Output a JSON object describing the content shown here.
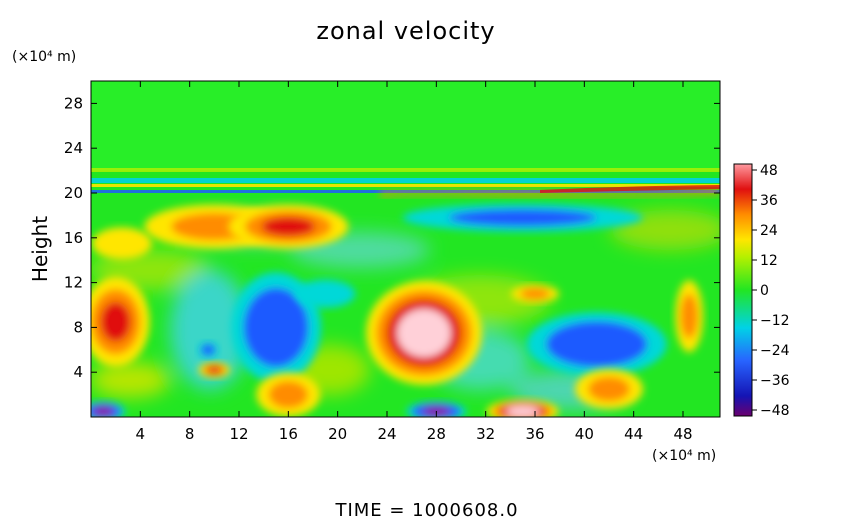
{
  "chart_data": {
    "type": "heatmap",
    "title": "zonal velocity",
    "ylabel": "Height",
    "y_unit": "(×10⁴ m)",
    "x_unit": "(×10⁴ m)",
    "xlabel": "",
    "x_ticks": [
      "4",
      "8",
      "12",
      "16",
      "20",
      "24",
      "28",
      "32",
      "36",
      "40",
      "44",
      "48"
    ],
    "y_ticks": [
      "4",
      "8",
      "12",
      "16",
      "20",
      "24",
      "28"
    ],
    "xlim": [
      0,
      51
    ],
    "ylim": [
      0,
      30
    ],
    "colorbar": {
      "ticks": [
        "48",
        "36",
        "24",
        "12",
        "0",
        "−12",
        "−24",
        "−36",
        "−48"
      ],
      "range": [
        -48,
        48
      ]
    },
    "colors": {
      "strong_positive": "#e01010",
      "positive": "#ff8c00",
      "weak_positive": "#ffe600",
      "neutral": "#22e622",
      "weak_negative": "#00d8d8",
      "negative": "#1e5aff",
      "strong_negative": "#0a0aa0",
      "extreme_positive": "#ffd0d8",
      "extreme_negative": "#8a0a9a"
    },
    "features": [
      {
        "x": 2,
        "y": 8.5,
        "value": 38
      },
      {
        "x": 15,
        "y": 8,
        "value": -44
      },
      {
        "x": 27,
        "y": 7.5,
        "value": 48
      },
      {
        "x": 41,
        "y": 6.5,
        "value": -40
      },
      {
        "x": 10,
        "y": 17,
        "value": 34
      },
      {
        "x": 16,
        "y": 17,
        "value": 38
      },
      {
        "x": 16,
        "y": 2,
        "value": 32
      },
      {
        "x": 42,
        "y": 2.5,
        "value": 28
      },
      {
        "x": 35,
        "y": 0.5,
        "value": 48
      },
      {
        "x": 28,
        "y": 0.5,
        "value": -48
      },
      {
        "x": 1,
        "y": 0.5,
        "value": -48
      },
      {
        "x": 10,
        "y": 4.2,
        "value": 42
      },
      {
        "x": 9.5,
        "y": 6,
        "value": -36
      },
      {
        "x": 48.5,
        "y": 9,
        "value": 32
      },
      {
        "x": 36,
        "y": 11,
        "value": 24
      },
      {
        "x": 35,
        "y": 17.8,
        "value": -28
      },
      {
        "x": 2.5,
        "y": 15.5,
        "value": 14
      },
      {
        "x": 19,
        "y": 11,
        "value": -16
      }
    ]
  },
  "footer": {
    "time_label": "TIME  =  1000608.0"
  }
}
